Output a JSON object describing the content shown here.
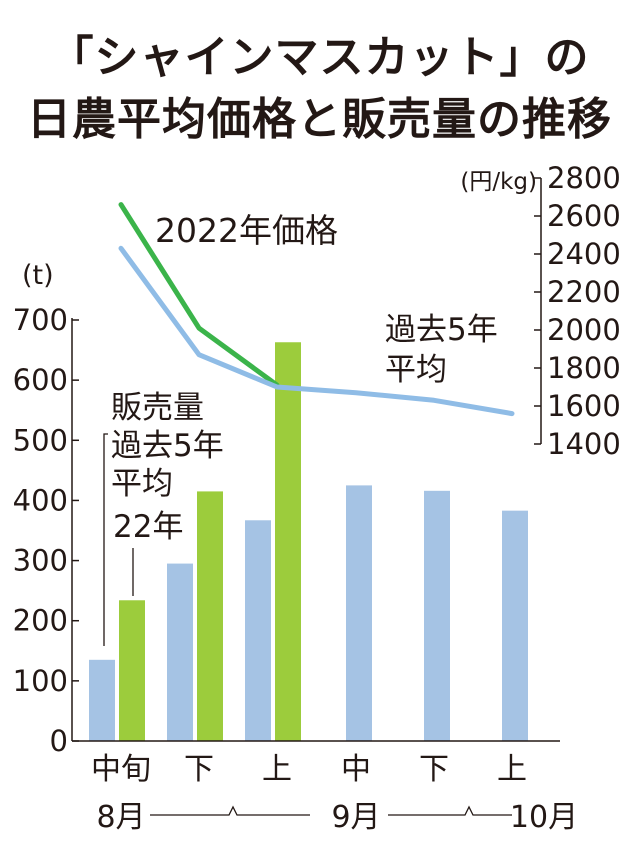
{
  "title": {
    "line1": "「シャインマスカット」の",
    "line2": "日農平均価格と販売量の推移"
  },
  "colors": {
    "bar_past": "#a5c3e4",
    "bar_2022": "#9ccc3c",
    "line_2022": "#3bb44a",
    "line_past": "#8fbce6"
  },
  "chart_data": {
    "type": "bar+line",
    "left_axis": {
      "unit_label": "(t)",
      "ylim": [
        0,
        700
      ],
      "ticks": [
        0,
        100,
        200,
        300,
        400,
        500,
        600,
        700
      ]
    },
    "right_axis": {
      "unit_label": "(円/kg)",
      "ylim": [
        1400,
        2800
      ],
      "ticks": [
        1400,
        1600,
        1800,
        2000,
        2200,
        2400,
        2600,
        2800
      ]
    },
    "categories": [
      "中旬",
      "下",
      "上",
      "中",
      "下",
      "上"
    ],
    "months": [
      "8月",
      "9月",
      "10月"
    ],
    "bar_series": [
      {
        "name": "過去5年平均",
        "label_lines": [
          "販売量",
          "過去5年",
          "平均"
        ],
        "values": [
          135,
          295,
          367,
          425,
          416,
          383
        ]
      },
      {
        "name": "22年",
        "label_lines": [
          "22年"
        ],
        "values": [
          234,
          415,
          663,
          null,
          null,
          null
        ]
      }
    ],
    "line_series": [
      {
        "name": "2022年価格",
        "label_lines": [
          "2022年価格"
        ],
        "values": [
          2660,
          2010,
          1710,
          null,
          null,
          null
        ]
      },
      {
        "name": "過去5年平均",
        "label_lines": [
          "過去5年",
          "平均"
        ],
        "values": [
          2430,
          1870,
          1700,
          1670,
          1630,
          1560
        ]
      }
    ]
  }
}
